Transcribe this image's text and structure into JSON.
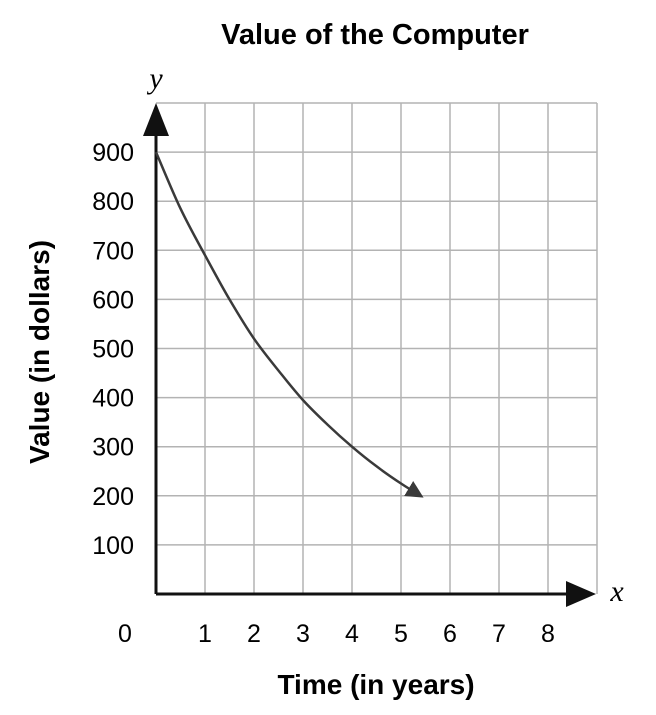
{
  "chart_data": {
    "type": "line",
    "title": "Value of the Computer",
    "xlabel": "Time (in years)",
    "ylabel": "Value (in dollars)",
    "x_axis_variable": "x",
    "y_axis_variable": "y",
    "xlim": [
      0,
      9
    ],
    "ylim": [
      0,
      1000
    ],
    "x_ticks": [
      "0",
      "1",
      "2",
      "3",
      "4",
      "5",
      "6",
      "7",
      "8"
    ],
    "y_ticks": [
      "100",
      "200",
      "300",
      "400",
      "500",
      "600",
      "700",
      "800",
      "900"
    ],
    "grid": true,
    "series": [
      {
        "x": [
          0,
          0.5,
          1,
          1.5,
          2,
          2.5,
          3,
          3.5,
          4,
          4.5,
          5,
          5.4
        ],
        "y": [
          900,
          785,
          690,
          600,
          520,
          455,
          395,
          345,
          300,
          260,
          225,
          200
        ],
        "arrow_end": true
      }
    ]
  },
  "colors": {
    "axis": "#111111",
    "grid": "#b3b3b3",
    "curve": "#3a3a3a"
  }
}
